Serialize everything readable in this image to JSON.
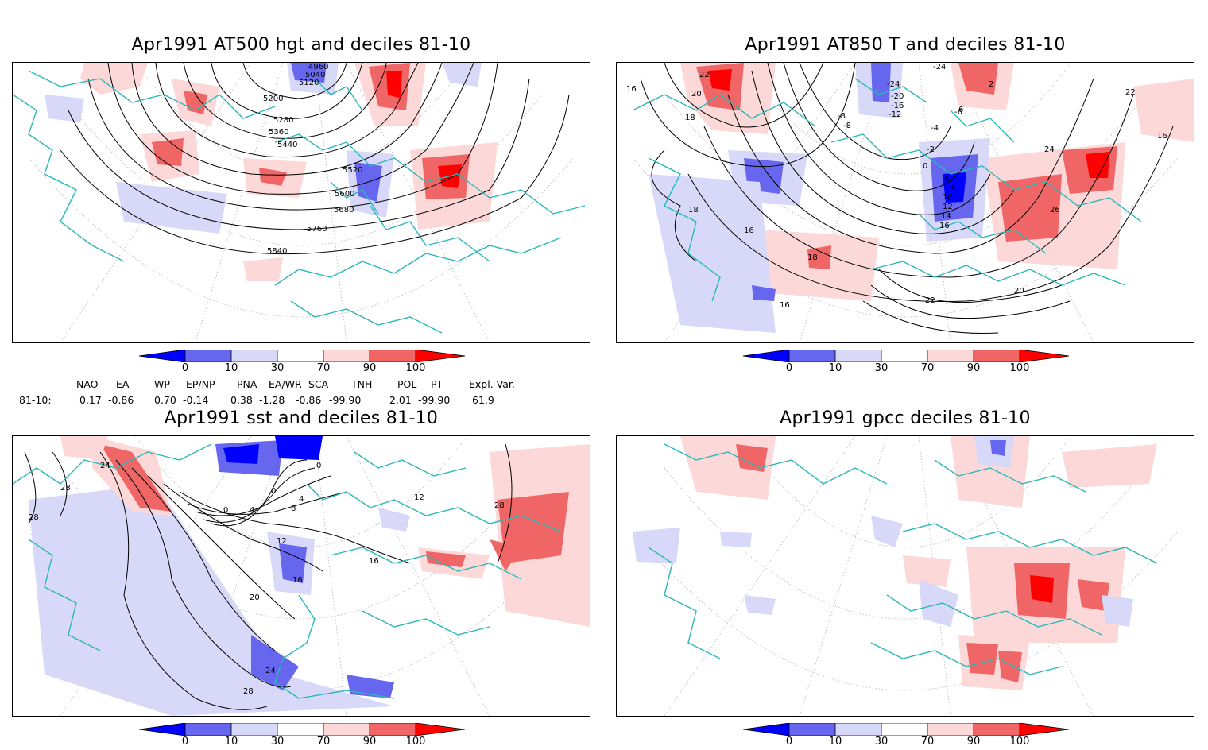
{
  "panels": [
    {
      "id": "hgt500",
      "title": "Apr1991 AT500 hgt and deciles 81-10",
      "contour_labels": [
        "4960",
        "5040",
        "5120",
        "5200",
        "5280",
        "5360",
        "5440",
        "5520",
        "5600",
        "5680",
        "5760",
        "5840"
      ]
    },
    {
      "id": "t850",
      "title": "Apr1991 AT850 T and deciles 81-10",
      "contour_labels": [
        "22",
        "20",
        "18",
        "16",
        "18",
        "16",
        "16",
        "-24",
        "-24",
        "-20",
        "-16",
        "-12",
        "-8",
        "-6",
        "-4",
        "-2",
        "0",
        "2",
        "4",
        "6",
        "8",
        "10",
        "12",
        "14",
        "16",
        "18",
        "20",
        "22",
        "24",
        "26",
        "22",
        "16",
        "-8"
      ]
    },
    {
      "id": "sst",
      "title": "Apr1991 sst and deciles 81-10",
      "contour_labels": [
        "24",
        "28",
        "28",
        "0",
        "0",
        "0",
        "4",
        "4",
        "8",
        "12",
        "12",
        "16",
        "16",
        "20",
        "24",
        "28",
        "28"
      ]
    },
    {
      "id": "gpcc",
      "title": "Apr1991 gpcc deciles 81-10",
      "contour_labels": []
    }
  ],
  "colorbar": {
    "labels": [
      "0",
      "10",
      "30",
      "70",
      "90",
      "100"
    ],
    "colors": [
      "#0000ff",
      "#6666ee",
      "#d8d8f8",
      "#ffffff",
      "#fcd8d8",
      "#f06666",
      "#ff0000"
    ]
  },
  "indices": {
    "headers": [
      "NAO",
      "EA",
      "WP",
      "EP/NP",
      "PNA",
      "EA/WR",
      "SCA",
      "TNH",
      "POL",
      "PT",
      "Expl. Var."
    ],
    "row_label": "81-10:",
    "values": [
      "0.17",
      "-0.86",
      "0.70",
      "-0.14",
      "0.38",
      "-1.28",
      "-0.86",
      "-99.90",
      "2.01",
      "-99.90",
      "61.9"
    ]
  },
  "colors": {
    "coast": "#2ab8b8",
    "contour": "#000000",
    "grid": "#999999"
  }
}
